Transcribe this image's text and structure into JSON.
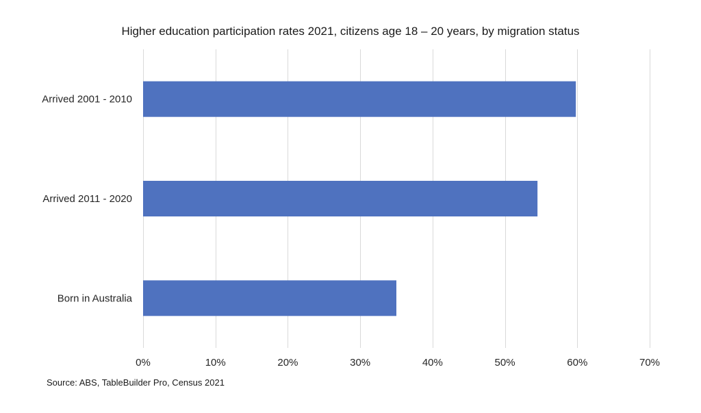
{
  "chart_data": {
    "type": "bar",
    "orientation": "horizontal",
    "title": "Higher education participation rates 2021, citizens age 18 – 20 years, by migration status",
    "categories": [
      "Arrived 2001 - 2010",
      "Arrived 2011 - 2020",
      "Born in Australia"
    ],
    "values": [
      59.8,
      54.5,
      35.0
    ],
    "value_unit": "%",
    "xlim": [
      0,
      70
    ],
    "x_ticks": [
      0,
      10,
      20,
      30,
      40,
      50,
      60,
      70
    ],
    "x_tick_labels": [
      "0%",
      "10%",
      "20%",
      "30%",
      "40%",
      "50%",
      "60%",
      "70%"
    ],
    "xlabel": "",
    "ylabel": "",
    "grid": "vertical",
    "legend": "none",
    "bar_color": "#4F72BF",
    "grid_color": "#D9D9D9",
    "source": "Source: ABS, TableBuilder Pro, Census 2021"
  }
}
